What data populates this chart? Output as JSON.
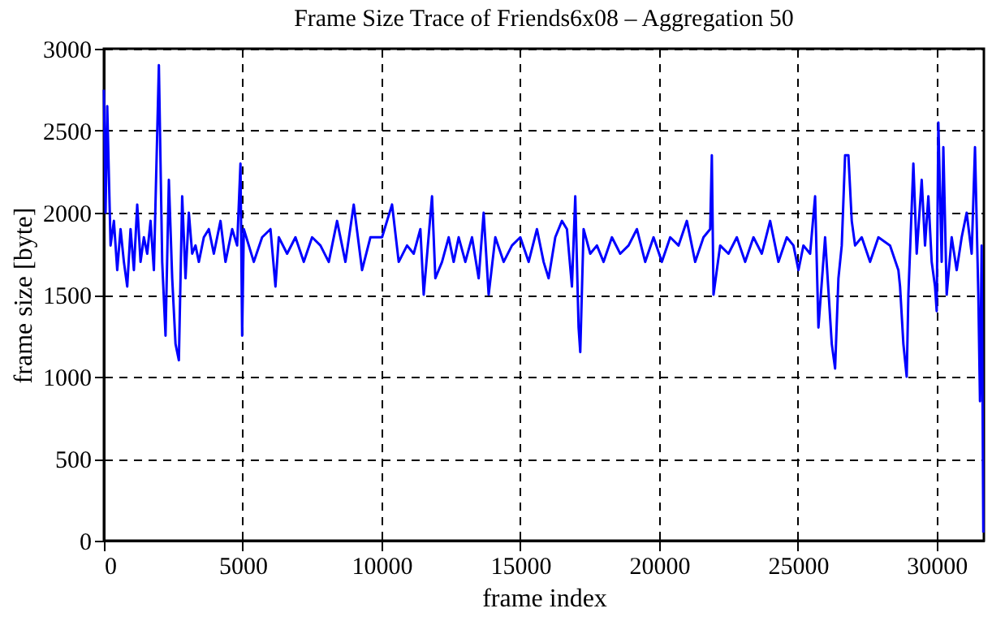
{
  "chart_data": {
    "type": "line",
    "title": "Frame Size Trace of Friends6x08 – Aggregation 50",
    "xlabel": "frame index",
    "ylabel": "frame size [byte]",
    "x": [
      0,
      60,
      120,
      240,
      360,
      480,
      600,
      720,
      840,
      960,
      1080,
      1200,
      1320,
      1440,
      1560,
      1680,
      1800,
      1980,
      2100,
      2220,
      2340,
      2460,
      2580,
      2700,
      2820,
      2940,
      3060,
      3180,
      3300,
      3420,
      3600,
      3780,
      3960,
      4200,
      4380,
      4620,
      4800,
      4920,
      4980,
      5040,
      5220,
      5400,
      5700,
      6000,
      6180,
      6300,
      6600,
      6900,
      7200,
      7500,
      7800,
      8100,
      8400,
      8700,
      9000,
      9300,
      9600,
      10020,
      10380,
      10620,
      10920,
      11160,
      11400,
      11520,
      11820,
      11940,
      12180,
      12420,
      12600,
      12780,
      13020,
      13260,
      13500,
      13680,
      13860,
      14100,
      14400,
      14700,
      15000,
      15300,
      15600,
      15840,
      16020,
      16260,
      16500,
      16680,
      16860,
      16980,
      17100,
      17160,
      17280,
      17520,
      17760,
      18000,
      18300,
      18600,
      18900,
      19200,
      19500,
      19800,
      20100,
      20400,
      20700,
      21000,
      21300,
      21600,
      21840,
      21900,
      21960,
      22200,
      22500,
      22800,
      23100,
      23400,
      23700,
      24000,
      24300,
      24600,
      24840,
      25020,
      25200,
      25440,
      25620,
      25740,
      25980,
      26220,
      26340,
      26460,
      26580,
      26700,
      26820,
      26940,
      27060,
      27300,
      27600,
      27900,
      28320,
      28620,
      28680,
      28800,
      28920,
      28980,
      29160,
      29280,
      29460,
      29580,
      29700,
      29820,
      29940,
      30000,
      30060,
      30180,
      30240,
      30360,
      30540,
      30720,
      30900,
      31080,
      31260,
      31380,
      31500,
      31560,
      31620,
      31680
    ],
    "series": [
      {
        "color": "#0000ff",
        "values": [
          2750,
          2000,
          2650,
          1800,
          1950,
          1650,
          1900,
          1700,
          1550,
          1900,
          1650,
          2050,
          1700,
          1850,
          1750,
          1950,
          1650,
          2900,
          1700,
          1250,
          2200,
          1600,
          1200,
          1100,
          2100,
          1600,
          2000,
          1750,
          1800,
          1700,
          1850,
          1900,
          1750,
          1950,
          1700,
          1900,
          1800,
          2300,
          1250,
          1900,
          1800,
          1700,
          1850,
          1900,
          1550,
          1850,
          1750,
          1850,
          1700,
          1850,
          1800,
          1700,
          1950,
          1700,
          2050,
          1650,
          1850,
          1850,
          2050,
          1700,
          1800,
          1750,
          1900,
          1500,
          2100,
          1600,
          1700,
          1850,
          1700,
          1850,
          1700,
          1850,
          1600,
          2000,
          1500,
          1850,
          1700,
          1800,
          1850,
          1700,
          1900,
          1700,
          1600,
          1850,
          1950,
          1900,
          1550,
          2100,
          1300,
          1150,
          1900,
          1750,
          1800,
          1700,
          1850,
          1750,
          1800,
          1900,
          1700,
          1850,
          1700,
          1850,
          1800,
          1950,
          1700,
          1850,
          1900,
          2350,
          1500,
          1800,
          1750,
          1850,
          1700,
          1850,
          1750,
          1950,
          1700,
          1850,
          1800,
          1650,
          1800,
          1750,
          2100,
          1300,
          1850,
          1200,
          1050,
          1600,
          1800,
          2350,
          2350,
          1950,
          1800,
          1850,
          1700,
          1850,
          1800,
          1650,
          1550,
          1200,
          1000,
          1500,
          2300,
          1750,
          2200,
          1800,
          2100,
          1700,
          1550,
          1400,
          2550,
          1700,
          2400,
          1500,
          1850,
          1650,
          1850,
          2000,
          1750,
          2400,
          1500,
          850,
          1800,
          50
        ]
      }
    ],
    "xlim": [
      0,
      31700
    ],
    "xticks": [
      0,
      5000,
      10000,
      15000,
      20000,
      25000,
      30000
    ],
    "ylim": [
      0,
      3000
    ],
    "yticks": [
      0,
      500,
      1000,
      1500,
      2000,
      2500,
      3000
    ],
    "grid": true,
    "line_style": "solid"
  }
}
